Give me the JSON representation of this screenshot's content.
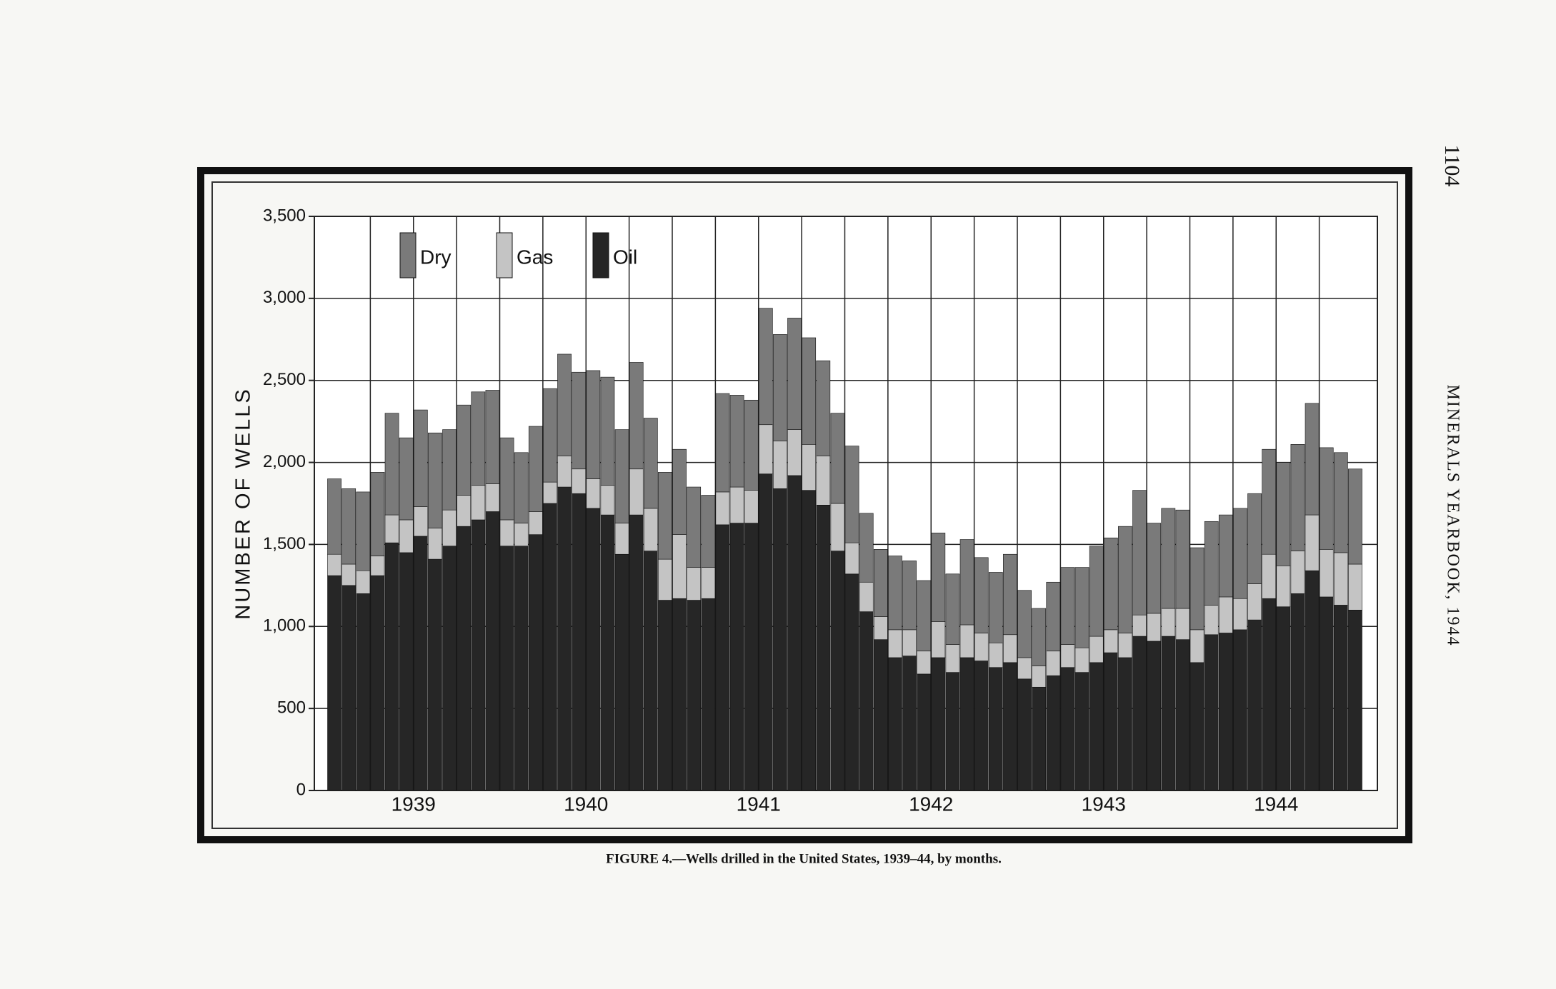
{
  "page": {
    "page_number": "1104",
    "running_head": "MINERALS YEARBOOK, 1944"
  },
  "chart_data": {
    "type": "stacked-bar",
    "title": "FIGURE 4.—Wells drilled in the United States, 1939–44, by months.",
    "y_label": "NUMBER OF WELLS",
    "group_labels": [
      "1939",
      "1940",
      "1941",
      "1942",
      "1943",
      "1944"
    ],
    "categories": [
      null,
      null,
      null,
      null,
      null,
      null,
      null,
      null,
      null,
      null,
      null,
      null,
      null,
      null,
      null,
      null,
      null,
      null,
      null,
      null,
      null,
      null,
      null,
      null,
      null,
      null,
      null,
      null,
      null,
      null,
      null,
      null,
      null,
      null,
      null,
      null,
      null,
      null,
      null,
      null,
      null,
      null,
      null,
      null,
      null,
      null,
      null,
      null,
      null,
      null,
      null,
      null,
      null,
      null,
      null,
      null,
      null,
      null,
      null,
      null,
      null,
      null,
      null,
      null,
      null,
      null,
      null,
      null,
      null,
      null,
      null,
      null
    ],
    "ylim": [
      0,
      3500
    ],
    "yticks": [
      0,
      500,
      {
        "value": 1000,
        "label": "1,000"
      },
      {
        "value": 1500,
        "label": "1,500"
      },
      {
        "value": 2000,
        "label": "2,000"
      },
      {
        "value": 2500,
        "label": "2,500"
      },
      {
        "value": 3000,
        "label": "3,000"
      },
      {
        "value": 3500,
        "label": "3,500"
      }
    ],
    "grid": true,
    "legend": "upper left",
    "series": [
      {
        "name": "Oil",
        "color": "#262626",
        "values": [
          1310,
          1250,
          1200,
          1310,
          1510,
          1450,
          1550,
          1410,
          1490,
          1610,
          1650,
          1700,
          1490,
          1490,
          1560,
          1750,
          1850,
          1810,
          1720,
          1680,
          1440,
          1680,
          1460,
          1160,
          1170,
          1160,
          1170,
          1620,
          1630,
          1630,
          1930,
          1840,
          1920,
          1830,
          1740,
          1460,
          1320,
          1090,
          920,
          810,
          820,
          710,
          810,
          720,
          810,
          790,
          750,
          780,
          680,
          630,
          700,
          750,
          720,
          780,
          840,
          810,
          940,
          910,
          940,
          920,
          780,
          950,
          960,
          980,
          1040,
          1170,
          1120,
          1200,
          1340,
          1180,
          1130,
          1100
        ]
      },
      {
        "name": "Gas",
        "color": "#c4c4c4",
        "values": [
          130,
          130,
          140,
          120,
          170,
          200,
          180,
          190,
          220,
          190,
          210,
          170,
          160,
          140,
          140,
          130,
          190,
          150,
          180,
          180,
          190,
          280,
          260,
          250,
          390,
          200,
          190,
          200,
          220,
          200,
          300,
          290,
          280,
          280,
          300,
          290,
          190,
          180,
          140,
          170,
          160,
          140,
          220,
          170,
          200,
          170,
          150,
          170,
          130,
          130,
          150,
          140,
          150,
          160,
          140,
          150,
          130,
          170,
          170,
          190,
          200,
          180,
          220,
          190,
          220,
          270,
          250,
          260,
          340,
          290,
          320,
          280
        ]
      },
      {
        "name": "Dry",
        "color": "#7a7a7a",
        "values": [
          460,
          460,
          480,
          510,
          620,
          500,
          590,
          580,
          490,
          550,
          570,
          570,
          500,
          430,
          520,
          570,
          620,
          590,
          660,
          660,
          570,
          650,
          550,
          530,
          520,
          490,
          440,
          600,
          560,
          550,
          710,
          650,
          680,
          650,
          580,
          550,
          590,
          420,
          410,
          450,
          420,
          430,
          540,
          430,
          520,
          460,
          430,
          490,
          410,
          350,
          420,
          470,
          490,
          550,
          560,
          650,
          760,
          550,
          610,
          600,
          500,
          510,
          500,
          550,
          550,
          640,
          630,
          650,
          680,
          620,
          610,
          580
        ]
      }
    ]
  }
}
